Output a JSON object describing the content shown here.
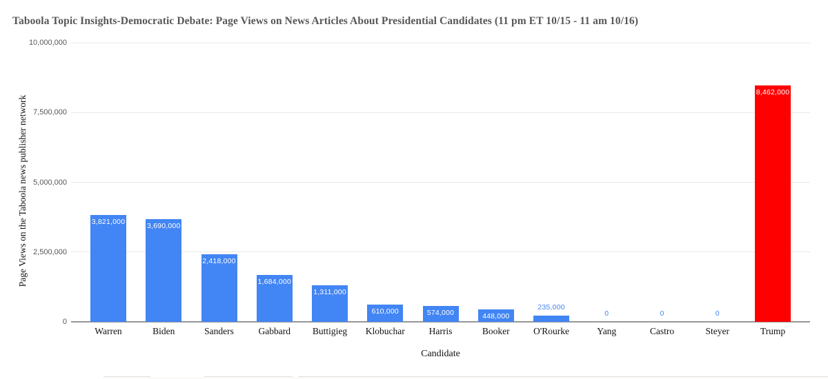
{
  "title": "Taboola Topic Insights-Democratic Debate: Page Views on News Articles About Presidential Candidates (11 pm ET 10/15 - 11 am 10/16)",
  "chart_data": {
    "type": "bar",
    "title": "Taboola Topic Insights-Democratic Debate: Page Views on News Articles About Presidential Candidates (11 pm ET 10/15 - 11 am 10/16)",
    "xlabel": "Candidate",
    "ylabel": "Page Views on the Taboola news publisher network",
    "categories": [
      "Warren",
      "Biden",
      "Sanders",
      "Gabbard",
      "Buttigieg",
      "Klobuchar",
      "Harris",
      "Booker",
      "O'Rourke",
      "Yang",
      "Castro",
      "Steyer",
      "Trump"
    ],
    "values": [
      3821000,
      3690000,
      2418000,
      1684000,
      1311000,
      610000,
      574000,
      448000,
      235000,
      0,
      0,
      0,
      8462000
    ],
    "value_labels": [
      "3,821,000",
      "3,690,000",
      "2,418,000",
      "1,684,000",
      "1,311,000",
      "610,000",
      "574,000",
      "448,000",
      "235,000",
      "0",
      "0",
      "0",
      "8,462,000"
    ],
    "ylim": [
      0,
      10000000
    ],
    "ytick_labels": [
      "0",
      "2,500,000",
      "5,000,000",
      "7,500,000",
      "10,000,000"
    ],
    "grid": true,
    "legend": "none",
    "colors": {
      "default_bar": "#4285f4",
      "highlight_bar": "#ff0000",
      "highlight_category": "Trump",
      "label_inside": "#ffffff",
      "label_outside": "#4285f4",
      "gridline": "#e8e8e8",
      "axis_line": "#969696",
      "title_text": "#575757"
    }
  }
}
